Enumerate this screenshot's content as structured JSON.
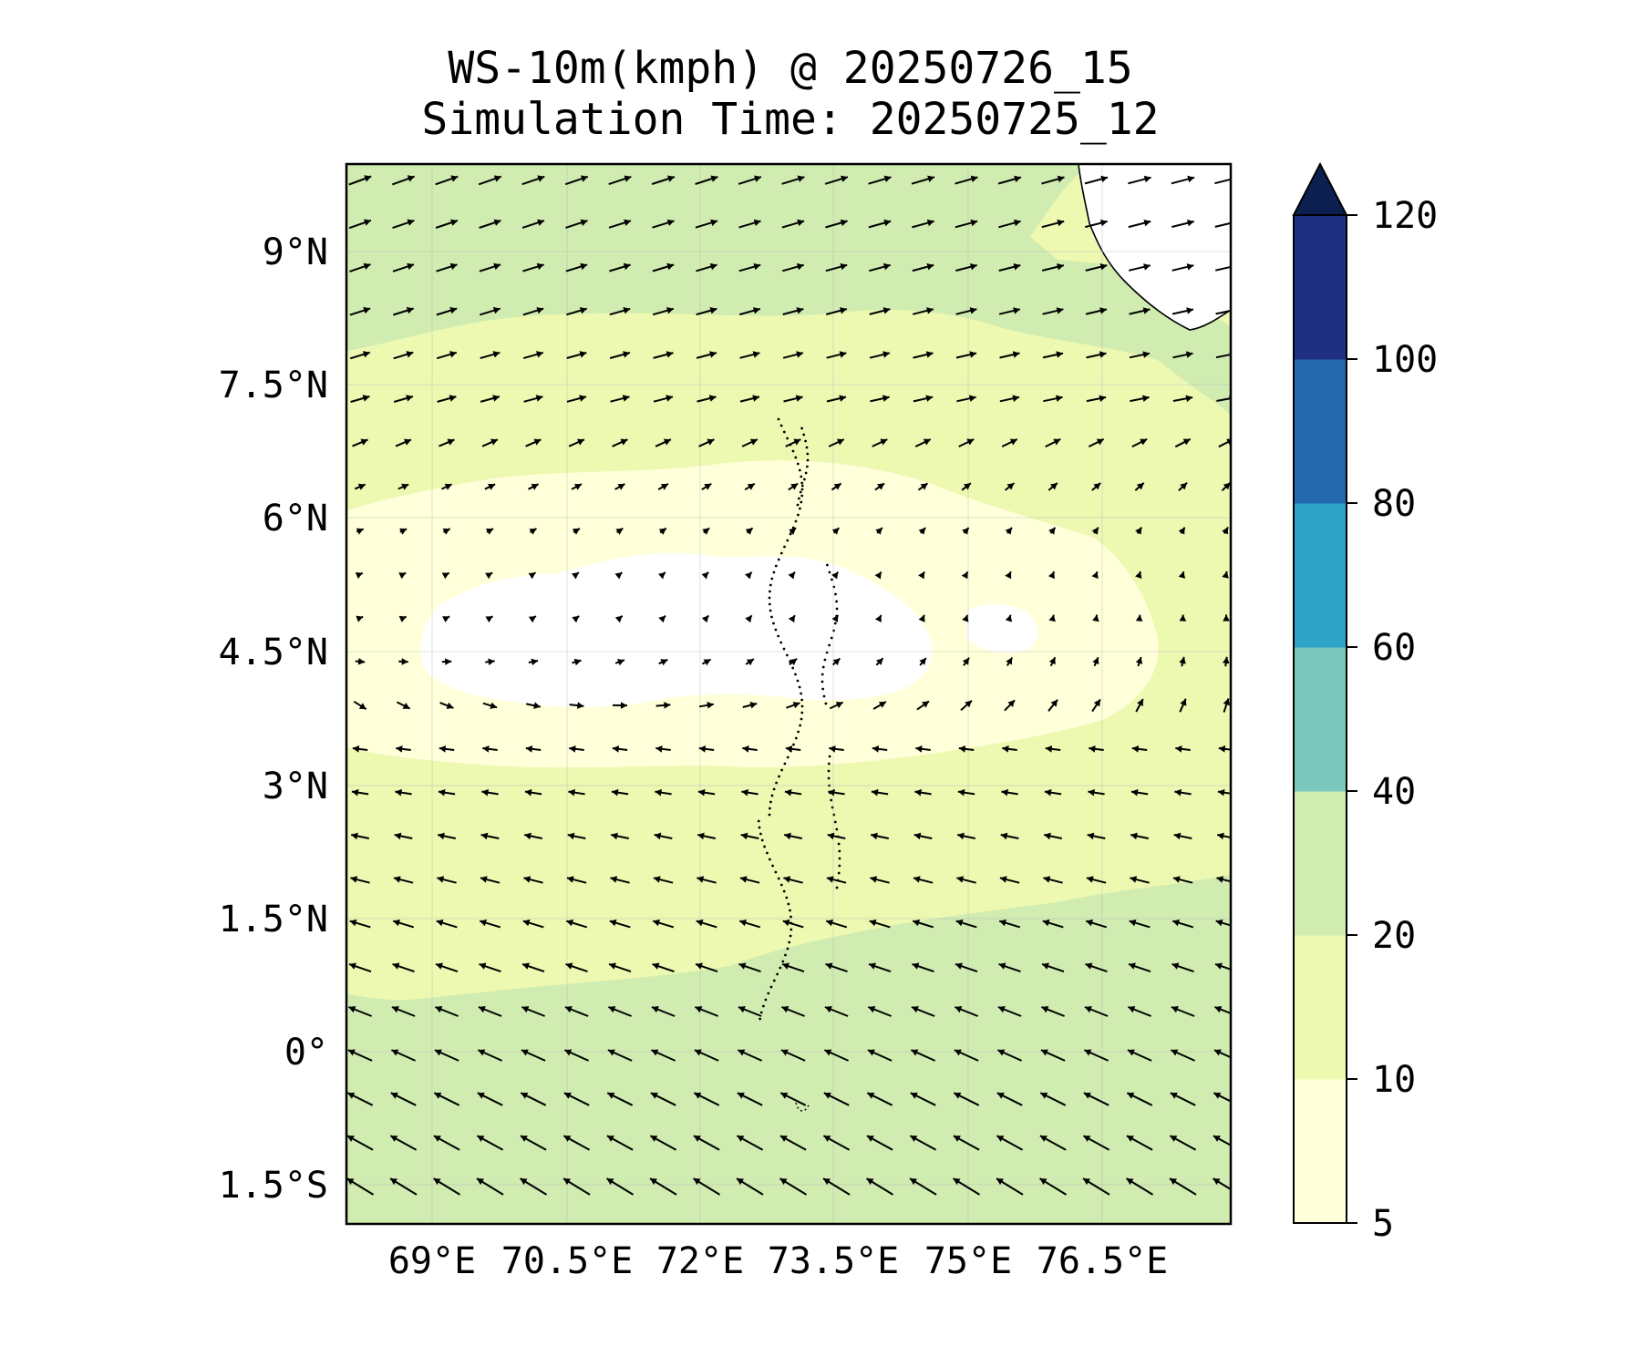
{
  "title": {
    "line1": "WS-10m(kmph) @ 20250726_15",
    "line2": "Simulation Time: 20250725_12"
  },
  "map": {
    "lon_ticks": [
      "69°E",
      "70.5°E",
      "72°E",
      "73.5°E",
      "75°E",
      "76.5°E"
    ],
    "lat_ticks": [
      "9°N",
      "7.5°N",
      "6°N",
      "4.5°N",
      "3°N",
      "1.5°N",
      "0°",
      "1.5°S"
    ],
    "grid": true,
    "vector_arrows": true
  },
  "colorbar": {
    "levels": [
      5,
      10,
      20,
      40,
      60,
      80,
      100,
      120
    ],
    "tick_labels": [
      "120",
      "100",
      "80",
      "60",
      "40",
      "20",
      "10",
      "5"
    ],
    "colors": [
      "#ffffd9",
      "#edf8b1",
      "#d0ecb0",
      "#7ac8bd",
      "#2ea2c7",
      "#2468ad",
      "#1f2f82"
    ],
    "extend_color": "#0c1f50",
    "extend": "max"
  },
  "colors": {
    "calm_white": "#ffffff",
    "land": "#ffffff",
    "frame": "#000000"
  }
}
